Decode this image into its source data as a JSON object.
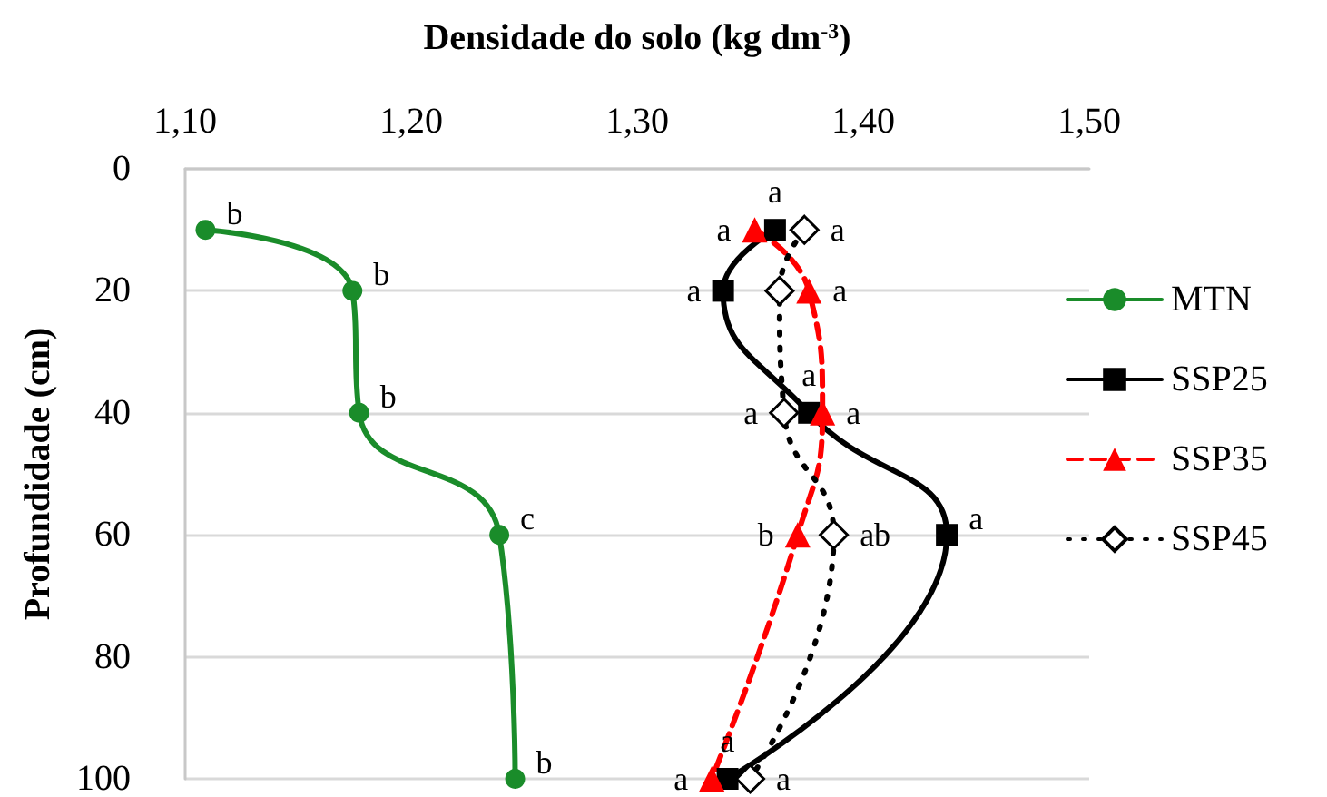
{
  "chart_data": {
    "type": "line",
    "xlabel": "Densidade do solo (kg dm$^{-3}$)",
    "ylabel": "Profundidade (cm)",
    "xlim": [
      1.1,
      1.5
    ],
    "xticks": [
      {
        "value": 1.1,
        "label": "1,10"
      },
      {
        "value": 1.2,
        "label": "1,20"
      },
      {
        "value": 1.3,
        "label": "1,30"
      },
      {
        "value": 1.4,
        "label": "1,40"
      },
      {
        "value": 1.5,
        "label": "1,50"
      }
    ],
    "ylim": [
      100,
      0
    ],
    "yticks": [
      0,
      20,
      40,
      60,
      80,
      100
    ],
    "grid": "y",
    "legend": "right",
    "series": [
      {
        "name": "MTN",
        "color": "#1a8c2a",
        "marker": "circle",
        "line_style": "solid",
        "x": [
          1.109,
          1.174,
          1.177,
          1.239,
          1.246
        ],
        "values": [
          10,
          20,
          40,
          60,
          100
        ],
        "value_labels": [
          "b",
          "b",
          "b",
          "c",
          "b"
        ]
      },
      {
        "name": "SSP25",
        "color": "#000000",
        "marker": "square",
        "line_style": "solid",
        "x": [
          1.361,
          1.338,
          1.376,
          1.437,
          1.34
        ],
        "values": [
          10,
          20,
          40,
          60,
          100
        ],
        "value_labels": [
          "a",
          "a",
          "a",
          "a",
          "a"
        ]
      },
      {
        "name": "SSP35",
        "color": "#ff0000",
        "marker": "triangle",
        "line_style": "dashed",
        "x": [
          1.352,
          1.376,
          1.382,
          1.371,
          1.333
        ],
        "values": [
          10,
          20,
          40,
          60,
          100
        ],
        "value_labels": [
          "a",
          "a",
          "a",
          "b",
          "a"
        ]
      },
      {
        "name": "SSP45",
        "color": "#000000",
        "marker": "diamond",
        "line_style": "dotted",
        "x": [
          1.374,
          1.363,
          1.365,
          1.387,
          1.35
        ],
        "values": [
          10,
          20,
          40,
          60,
          100
        ],
        "value_labels": [
          "a",
          null,
          "a",
          "ab",
          "a"
        ]
      }
    ]
  }
}
